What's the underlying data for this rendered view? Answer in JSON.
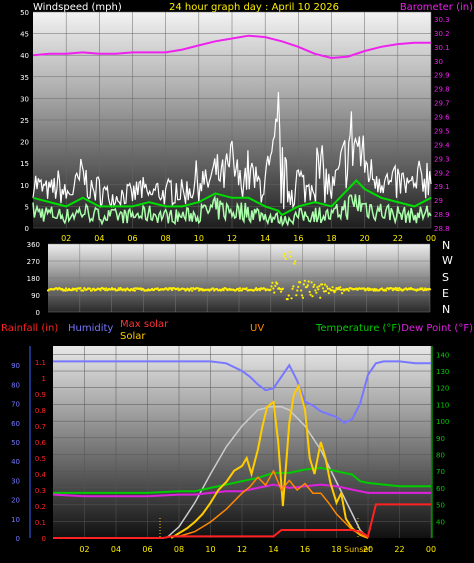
{
  "wind_chart": {
    "labels": {
      "left_title": "Windspeed (mph)",
      "center_title": "24 hour graph day : April 10 2026",
      "right_title": "Barometer (in)"
    },
    "y_ticks_left": [
      "0",
      "5",
      "10",
      "15",
      "20",
      "25",
      "30",
      "35",
      "40",
      "45",
      "50"
    ],
    "y_ticks_right": [
      "28.8",
      "28.9",
      "29",
      "29.1",
      "29.2",
      "29.3",
      "29.4",
      "29.5",
      "29.6",
      "29.7",
      "29.8",
      "29.9",
      "30",
      "30.1",
      "30.2",
      "30.3"
    ],
    "x_ticks": [
      "02",
      "04",
      "06",
      "08",
      "10",
      "12",
      "14",
      "16",
      "18",
      "20",
      "22",
      "00"
    ],
    "ylim_left": [
      0,
      50
    ],
    "ylim_right": [
      28.8,
      30.35
    ],
    "colors": {
      "gust": "#ffffff",
      "avg": "#00dd00",
      "speed": "#aaffaa",
      "baro": "#ee22ee"
    },
    "baro": {
      "x": [
        0,
        1,
        2,
        3,
        4,
        5,
        6,
        7,
        8,
        9,
        10,
        11,
        12,
        13,
        14,
        15,
        16,
        17,
        18,
        19,
        20,
        21,
        22,
        23,
        24
      ],
      "y": [
        30.04,
        30.05,
        30.05,
        30.06,
        30.05,
        30.05,
        30.06,
        30.06,
        30.06,
        30.08,
        30.11,
        30.14,
        30.16,
        30.18,
        30.17,
        30.14,
        30.1,
        30.05,
        30.02,
        30.03,
        30.07,
        30.1,
        30.12,
        30.13,
        30.13
      ]
    },
    "avg": {
      "x": [
        0,
        1,
        2,
        3,
        4,
        5,
        6,
        7,
        8,
        9,
        10,
        11,
        12,
        13,
        14,
        14.8,
        15,
        15.5,
        16,
        17,
        18,
        19,
        19.5,
        20,
        21,
        22,
        23,
        24
      ],
      "y": [
        7,
        6,
        5,
        7,
        5,
        5,
        5,
        6,
        5,
        5,
        6,
        8,
        7,
        7,
        5,
        4,
        3,
        4,
        5,
        6,
        5,
        9,
        11,
        9,
        7,
        6,
        5,
        7
      ]
    },
    "gust_peaks": {
      "x": [
        0,
        0.5,
        1,
        1.5,
        2,
        2.5,
        3,
        3.5,
        4,
        4.5,
        5,
        5.5,
        6,
        6.5,
        7,
        7.5,
        8,
        8.5,
        9,
        9.5,
        10,
        10.5,
        11,
        11.5,
        12,
        12.5,
        13,
        13.5,
        14,
        14.5,
        14.8,
        15,
        15.5,
        16,
        16.5,
        17,
        17.5,
        18,
        18.5,
        19,
        19.3,
        19.6,
        20,
        20.5,
        21,
        21.5,
        22,
        22.5,
        23,
        23.5,
        24
      ],
      "y": [
        15,
        12,
        11,
        14,
        10,
        12,
        18,
        11,
        13,
        10,
        9,
        11,
        10,
        13,
        9,
        12,
        10,
        15,
        11,
        13,
        17,
        13,
        18,
        16,
        22,
        14,
        19,
        14,
        16,
        22,
        36,
        20,
        13,
        17,
        12,
        21,
        19,
        12,
        18,
        27,
        31,
        27,
        21,
        16,
        18,
        13,
        15,
        14,
        13,
        18,
        17
      ]
    }
  },
  "dir_chart": {
    "y_ticks": [
      "0",
      "90",
      "180",
      "270",
      "360"
    ],
    "ylim": [
      0,
      360
    ],
    "compass": [
      "N",
      "W",
      "S",
      "E",
      "N"
    ],
    "color": "#ffee00"
  },
  "combo_chart": {
    "labels": {
      "rainfall": "Rainfall (in)",
      "humidity": "Humidity",
      "max_solar": "Max solar",
      "solar": "Solar",
      "uv": "UV",
      "temperature": "Temperature (°F)",
      "dew_point": "Dew Point (°F)",
      "sunset": "Sunset"
    },
    "y_ticks_rain": [
      "0",
      "0.1",
      "0.2",
      "0.3",
      "0.4",
      "0.5",
      "0.6",
      "0.7",
      "0.8",
      "0.9",
      "1",
      "1.1"
    ],
    "y_ticks_hum": [
      "0",
      "10",
      "20",
      "30",
      "40",
      "50",
      "60",
      "70",
      "80",
      "90"
    ],
    "y_ticks_temp": [
      "40",
      "50",
      "60",
      "70",
      "80",
      "90",
      "100",
      "110",
      "120",
      "130",
      "140"
    ],
    "x_ticks": [
      "02",
      "04",
      "06",
      "08",
      "10",
      "12",
      "14",
      "16",
      "18",
      "20",
      "22",
      "00"
    ],
    "colors": {
      "rain": "#ff2222",
      "humidity": "#7777ff",
      "max_solar": "#cccccc",
      "solar": "#ffcc00",
      "uv": "#ff8800",
      "temperature": "#00cc00",
      "dew_point": "#dd22dd",
      "rain_axis": "#3366ff"
    },
    "humidity": {
      "x": [
        0,
        2,
        4,
        6,
        8,
        9,
        10,
        11,
        12,
        12.5,
        13,
        13.5,
        14,
        14.5,
        15,
        15.5,
        16,
        16.5,
        17,
        18,
        18.5,
        19,
        19.5,
        20,
        20.5,
        21,
        22,
        23,
        24
      ],
      "y": [
        92,
        92,
        92,
        92,
        92,
        92,
        92,
        91,
        87,
        84,
        80,
        77,
        78,
        84,
        90,
        82,
        71,
        69,
        66,
        63,
        60,
        62,
        70,
        85,
        91,
        92,
        92,
        91,
        91
      ]
    },
    "temperature": {
      "x": [
        0,
        2,
        4,
        6,
        8,
        9,
        10,
        11,
        12,
        13,
        14,
        15,
        16,
        17,
        18,
        19,
        19.5,
        20,
        21,
        22,
        23,
        24
      ],
      "y": [
        57,
        57,
        57,
        57,
        58,
        58,
        60,
        62,
        64,
        66,
        69,
        69,
        71,
        72,
        70,
        68,
        64,
        63,
        62,
        61,
        61,
        61
      ]
    },
    "dew_point": {
      "x": [
        0,
        2,
        4,
        6,
        8,
        9,
        10,
        11,
        12,
        13,
        14,
        15,
        16,
        17,
        18,
        19,
        20,
        21,
        22,
        23,
        24
      ],
      "y": [
        56,
        55,
        55,
        55,
        56,
        56,
        57,
        58,
        58,
        60,
        62,
        60,
        61,
        62,
        61,
        59,
        57,
        57,
        57,
        57,
        57
      ]
    },
    "rain": {
      "x": [
        0,
        7,
        7.5,
        10,
        14,
        14.5,
        19,
        19.5,
        20,
        20.5,
        24
      ],
      "y": [
        0,
        0,
        0.01,
        0.01,
        0.01,
        0.05,
        0.05,
        0.04,
        0.01,
        0.21,
        0.21
      ]
    },
    "max_solar": {
      "x": [
        7.2,
        8,
        9,
        10,
        11,
        12,
        13,
        13.8,
        14.5,
        15,
        16,
        17,
        18,
        19,
        19.5,
        20
      ],
      "y": [
        0,
        0.07,
        0.22,
        0.4,
        0.57,
        0.7,
        0.8,
        0.82,
        0.82,
        0.8,
        0.7,
        0.55,
        0.35,
        0.15,
        0.05,
        0
      ]
    },
    "solar": {
      "x": [
        7.5,
        8,
        8.5,
        9,
        9.5,
        10,
        10.5,
        11,
        11.5,
        12,
        12.3,
        12.6,
        13,
        13.3,
        13.6,
        14,
        14.3,
        14.6,
        15,
        15.3,
        15.6,
        16,
        16.3,
        16.6,
        17,
        17.3,
        17.6,
        18,
        18.3,
        18.6,
        19,
        19.5,
        20
      ],
      "y": [
        0,
        0.03,
        0.06,
        0.1,
        0.15,
        0.22,
        0.3,
        0.35,
        0.42,
        0.45,
        0.5,
        0.4,
        0.55,
        0.7,
        0.82,
        0.85,
        0.6,
        0.2,
        0.72,
        0.9,
        0.95,
        0.8,
        0.5,
        0.4,
        0.6,
        0.5,
        0.35,
        0.22,
        0.28,
        0.12,
        0.06,
        0.02,
        0
      ]
    },
    "uv": {
      "x": [
        8,
        9,
        10,
        11,
        12,
        12.5,
        13,
        13.5,
        14,
        14.5,
        15,
        15.5,
        16,
        16.5,
        17,
        17.5,
        18,
        19,
        20
      ],
      "y": [
        0.01,
        0.04,
        0.1,
        0.18,
        0.28,
        0.32,
        0.38,
        0.33,
        0.42,
        0.3,
        0.36,
        0.3,
        0.34,
        0.28,
        0.28,
        0.22,
        0.15,
        0.05,
        0
      ]
    }
  }
}
